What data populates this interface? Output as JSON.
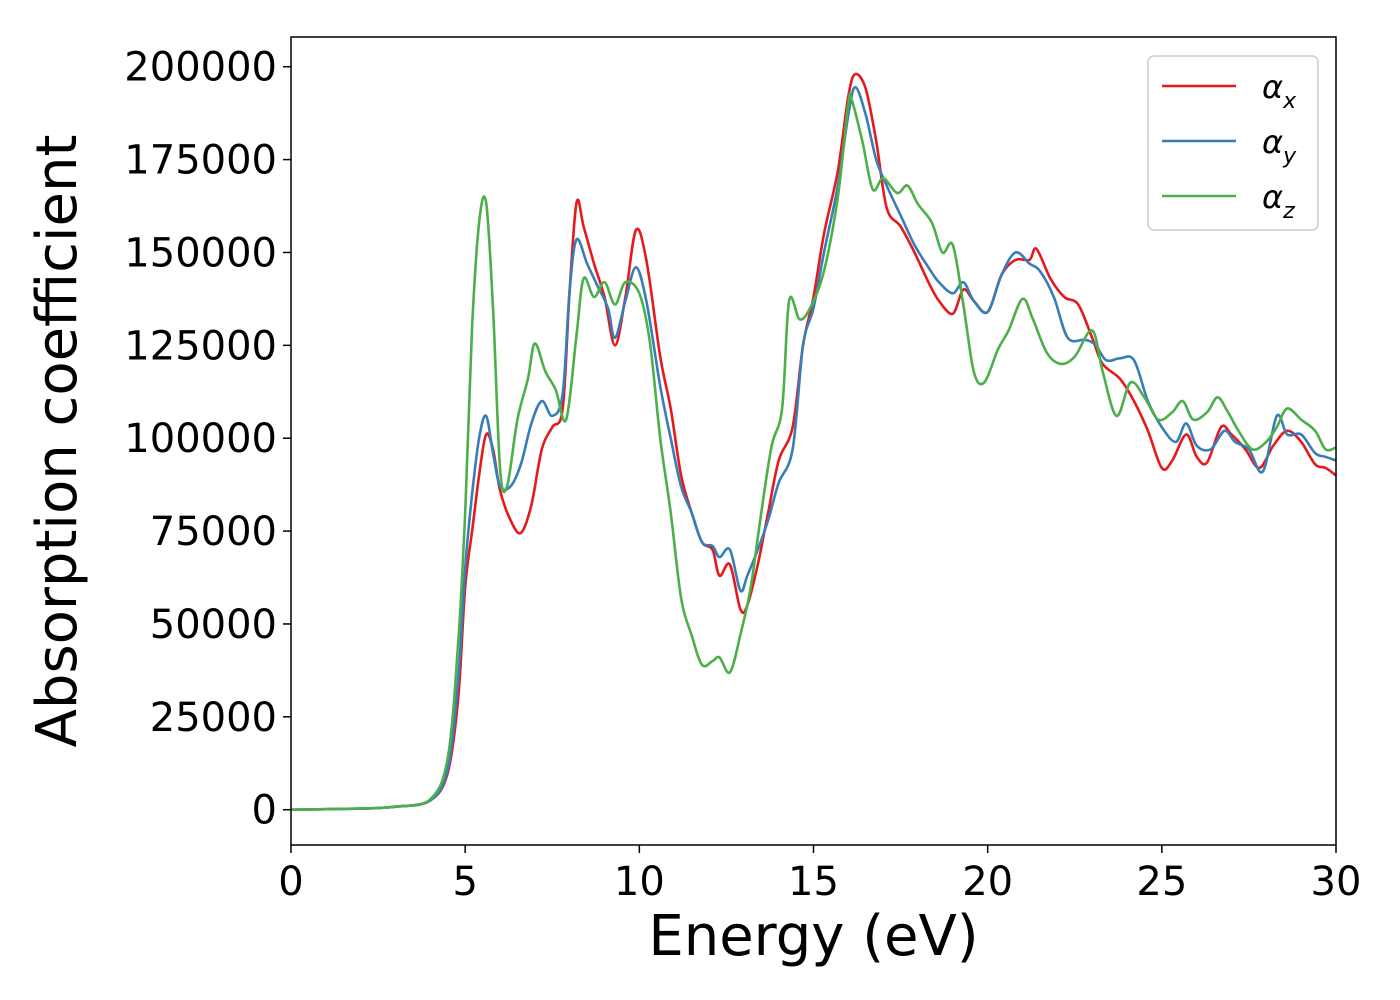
{
  "chart_data": {
    "type": "line",
    "xlabel": "Energy (eV)",
    "ylabel": "Absorption coefficient",
    "xlim": [
      0,
      30
    ],
    "ylim": [
      -9500,
      208000
    ],
    "xticks": [
      0,
      5,
      10,
      15,
      20,
      25,
      30
    ],
    "yticks": [
      0,
      25000,
      50000,
      75000,
      100000,
      125000,
      150000,
      175000,
      200000
    ],
    "grid": false,
    "legend_position": "top-right",
    "series": [
      {
        "name": "αx",
        "base": "α",
        "sub": "x",
        "color": "#e41a1c",
        "points": [
          [
            0,
            0
          ],
          [
            2,
            300
          ],
          [
            3,
            800
          ],
          [
            4,
            2500
          ],
          [
            4.5,
            10000
          ],
          [
            4.8,
            30000
          ],
          [
            5.0,
            60000
          ],
          [
            5.2,
            75000
          ],
          [
            5.4,
            90000
          ],
          [
            5.6,
            101000
          ],
          [
            5.8,
            97000
          ],
          [
            6.0,
            86000
          ],
          [
            6.3,
            78000
          ],
          [
            6.6,
            74500
          ],
          [
            6.9,
            82000
          ],
          [
            7.2,
            97000
          ],
          [
            7.5,
            103000
          ],
          [
            7.8,
            108000
          ],
          [
            8.0,
            140000
          ],
          [
            8.2,
            163500
          ],
          [
            8.4,
            157000
          ],
          [
            8.7,
            147000
          ],
          [
            9.0,
            138000
          ],
          [
            9.3,
            125000
          ],
          [
            9.6,
            138000
          ],
          [
            9.9,
            156000
          ],
          [
            10.2,
            148000
          ],
          [
            10.6,
            122000
          ],
          [
            10.9,
            108000
          ],
          [
            11.2,
            90000
          ],
          [
            11.5,
            80000
          ],
          [
            11.8,
            72000
          ],
          [
            12.1,
            70000
          ],
          [
            12.3,
            63000
          ],
          [
            12.6,
            66000
          ],
          [
            12.9,
            54000
          ],
          [
            13.1,
            55000
          ],
          [
            13.4,
            66000
          ],
          [
            13.7,
            80000
          ],
          [
            14.0,
            94000
          ],
          [
            14.4,
            103000
          ],
          [
            14.7,
            125000
          ],
          [
            15.0,
            138000
          ],
          [
            15.3,
            155000
          ],
          [
            15.7,
            172000
          ],
          [
            16.0,
            192000
          ],
          [
            16.2,
            198000
          ],
          [
            16.5,
            194000
          ],
          [
            16.8,
            180000
          ],
          [
            17.1,
            162000
          ],
          [
            17.5,
            157000
          ],
          [
            17.9,
            150000
          ],
          [
            18.3,
            142000
          ],
          [
            18.6,
            137000
          ],
          [
            19.0,
            133500
          ],
          [
            19.3,
            140000
          ],
          [
            19.6,
            137000
          ],
          [
            20.0,
            134000
          ],
          [
            20.4,
            144000
          ],
          [
            20.8,
            148000
          ],
          [
            21.2,
            148000
          ],
          [
            21.4,
            151000
          ],
          [
            21.8,
            143000
          ],
          [
            22.2,
            138000
          ],
          [
            22.6,
            136000
          ],
          [
            23.0,
            127000
          ],
          [
            23.3,
            120000
          ],
          [
            23.8,
            116000
          ],
          [
            24.2,
            110000
          ],
          [
            24.6,
            102000
          ],
          [
            25.0,
            92000
          ],
          [
            25.3,
            94000
          ],
          [
            25.7,
            101000
          ],
          [
            26.0,
            95000
          ],
          [
            26.3,
            93500
          ],
          [
            26.7,
            103000
          ],
          [
            27.0,
            101000
          ],
          [
            27.4,
            97000
          ],
          [
            27.8,
            92000
          ],
          [
            28.2,
            98000
          ],
          [
            28.6,
            102000
          ],
          [
            29.0,
            99000
          ],
          [
            29.4,
            93000
          ],
          [
            29.7,
            92000
          ],
          [
            30,
            90000
          ]
        ]
      },
      {
        "name": "αy",
        "base": "α",
        "sub": "y",
        "color": "#377eb8",
        "points": [
          [
            0,
            0
          ],
          [
            2,
            300
          ],
          [
            3,
            800
          ],
          [
            4,
            2500
          ],
          [
            4.5,
            11000
          ],
          [
            4.8,
            35000
          ],
          [
            5.0,
            65000
          ],
          [
            5.2,
            85000
          ],
          [
            5.4,
            100000
          ],
          [
            5.6,
            106000
          ],
          [
            5.8,
            96000
          ],
          [
            6.0,
            87000
          ],
          [
            6.3,
            87000
          ],
          [
            6.6,
            93000
          ],
          [
            6.9,
            104000
          ],
          [
            7.2,
            110000
          ],
          [
            7.5,
            106000
          ],
          [
            7.8,
            112000
          ],
          [
            8.0,
            140000
          ],
          [
            8.2,
            153500
          ],
          [
            8.5,
            147000
          ],
          [
            8.8,
            141000
          ],
          [
            9.1,
            135000
          ],
          [
            9.3,
            127000
          ],
          [
            9.6,
            137000
          ],
          [
            9.9,
            146000
          ],
          [
            10.2,
            137000
          ],
          [
            10.6,
            114000
          ],
          [
            10.9,
            100000
          ],
          [
            11.2,
            87000
          ],
          [
            11.5,
            80000
          ],
          [
            11.8,
            72000
          ],
          [
            12.1,
            71000
          ],
          [
            12.3,
            68000
          ],
          [
            12.6,
            70000
          ],
          [
            12.9,
            59000
          ],
          [
            13.1,
            63000
          ],
          [
            13.4,
            70000
          ],
          [
            13.7,
            78000
          ],
          [
            14.0,
            88000
          ],
          [
            14.4,
            97000
          ],
          [
            14.7,
            125000
          ],
          [
            15.0,
            135000
          ],
          [
            15.3,
            150000
          ],
          [
            15.7,
            168000
          ],
          [
            16.0,
            187000
          ],
          [
            16.2,
            194500
          ],
          [
            16.5,
            187000
          ],
          [
            16.8,
            175000
          ],
          [
            17.1,
            168000
          ],
          [
            17.5,
            160000
          ],
          [
            17.9,
            152000
          ],
          [
            18.3,
            146000
          ],
          [
            18.6,
            142000
          ],
          [
            19.0,
            139000
          ],
          [
            19.3,
            142000
          ],
          [
            19.6,
            137000
          ],
          [
            20.0,
            134000
          ],
          [
            20.4,
            144000
          ],
          [
            20.8,
            150000
          ],
          [
            21.2,
            147000
          ],
          [
            21.5,
            145000
          ],
          [
            21.9,
            138000
          ],
          [
            22.3,
            127000
          ],
          [
            22.8,
            126500
          ],
          [
            23.1,
            125000
          ],
          [
            23.4,
            121000
          ],
          [
            23.8,
            121500
          ],
          [
            24.2,
            121000
          ],
          [
            24.6,
            110000
          ],
          [
            25.0,
            103000
          ],
          [
            25.4,
            99000
          ],
          [
            25.7,
            104000
          ],
          [
            26.0,
            98000
          ],
          [
            26.4,
            97000
          ],
          [
            26.8,
            102000
          ],
          [
            27.1,
            99000
          ],
          [
            27.5,
            97000
          ],
          [
            27.9,
            91000
          ],
          [
            28.3,
            106000
          ],
          [
            28.6,
            101000
          ],
          [
            29.0,
            101000
          ],
          [
            29.4,
            96000
          ],
          [
            29.7,
            95000
          ],
          [
            30,
            94000
          ]
        ]
      },
      {
        "name": "αz",
        "base": "α",
        "sub": "z",
        "color": "#4daf4a",
        "points": [
          [
            0,
            0
          ],
          [
            2,
            300
          ],
          [
            3,
            800
          ],
          [
            4,
            2800
          ],
          [
            4.5,
            14000
          ],
          [
            4.8,
            45000
          ],
          [
            5.0,
            80000
          ],
          [
            5.2,
            130000
          ],
          [
            5.4,
            158000
          ],
          [
            5.6,
            163500
          ],
          [
            5.8,
            135000
          ],
          [
            6.0,
            92000
          ],
          [
            6.2,
            87000
          ],
          [
            6.5,
            105000
          ],
          [
            6.8,
            116000
          ],
          [
            7.0,
            125500
          ],
          [
            7.3,
            118000
          ],
          [
            7.6,
            113000
          ],
          [
            7.9,
            105000
          ],
          [
            8.2,
            128000
          ],
          [
            8.4,
            143000
          ],
          [
            8.7,
            138000
          ],
          [
            9.0,
            142000
          ],
          [
            9.3,
            136000
          ],
          [
            9.6,
            142000
          ],
          [
            10.0,
            139000
          ],
          [
            10.3,
            126000
          ],
          [
            10.6,
            100000
          ],
          [
            10.9,
            80000
          ],
          [
            11.2,
            57000
          ],
          [
            11.5,
            47000
          ],
          [
            11.8,
            39000
          ],
          [
            12.1,
            40000
          ],
          [
            12.3,
            41000
          ],
          [
            12.6,
            37000
          ],
          [
            12.9,
            47000
          ],
          [
            13.2,
            60000
          ],
          [
            13.5,
            80000
          ],
          [
            13.8,
            98000
          ],
          [
            14.1,
            108000
          ],
          [
            14.3,
            137000
          ],
          [
            14.6,
            132000
          ],
          [
            14.9,
            135000
          ],
          [
            15.3,
            145000
          ],
          [
            15.7,
            165000
          ],
          [
            16.0,
            190000
          ],
          [
            16.1,
            191000
          ],
          [
            16.4,
            180000
          ],
          [
            16.7,
            167000
          ],
          [
            17.0,
            170000
          ],
          [
            17.4,
            166000
          ],
          [
            17.7,
            168000
          ],
          [
            18.0,
            163000
          ],
          [
            18.4,
            158000
          ],
          [
            18.7,
            150000
          ],
          [
            19.0,
            152000
          ],
          [
            19.3,
            136000
          ],
          [
            19.6,
            118000
          ],
          [
            19.9,
            115000
          ],
          [
            20.3,
            124000
          ],
          [
            20.6,
            129000
          ],
          [
            21.0,
            137500
          ],
          [
            21.3,
            132000
          ],
          [
            21.7,
            123000
          ],
          [
            22.1,
            120000
          ],
          [
            22.5,
            122000
          ],
          [
            23.0,
            129000
          ],
          [
            23.3,
            118000
          ],
          [
            23.7,
            106000
          ],
          [
            24.1,
            115000
          ],
          [
            24.5,
            111000
          ],
          [
            24.9,
            105000
          ],
          [
            25.3,
            107000
          ],
          [
            25.6,
            110000
          ],
          [
            25.9,
            105000
          ],
          [
            26.3,
            107000
          ],
          [
            26.6,
            111000
          ],
          [
            26.9,
            107000
          ],
          [
            27.2,
            102000
          ],
          [
            27.6,
            97000
          ],
          [
            28.0,
            99000
          ],
          [
            28.3,
            103000
          ],
          [
            28.6,
            108000
          ],
          [
            29.0,
            105000
          ],
          [
            29.4,
            102000
          ],
          [
            29.7,
            97000
          ],
          [
            30,
            97500
          ]
        ]
      }
    ]
  }
}
